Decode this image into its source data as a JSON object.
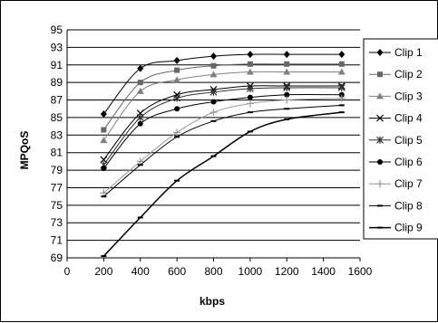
{
  "chart_data": {
    "type": "line",
    "title": "",
    "xlabel": "kbps",
    "ylabel": "MPQoS",
    "xlim": [
      0,
      1600
    ],
    "ylim": [
      69,
      95
    ],
    "xticks": [
      0,
      200,
      400,
      600,
      800,
      1000,
      1200,
      1400,
      1600
    ],
    "yticks": [
      69,
      71,
      73,
      75,
      77,
      79,
      81,
      83,
      85,
      87,
      89,
      91,
      93,
      95
    ],
    "grid": "horizontal",
    "legend_position": "right",
    "x": [
      200,
      400,
      600,
      800,
      1000,
      1200,
      1500
    ],
    "series": [
      {
        "name": "Clip 1",
        "marker": "diamond",
        "color": "#000000",
        "values": [
          85.4,
          90.6,
          91.5,
          92.0,
          92.2,
          92.2,
          92.2
        ]
      },
      {
        "name": "Clip 2",
        "marker": "square",
        "color": "#666666",
        "values": [
          83.6,
          89.0,
          90.4,
          90.9,
          91.1,
          91.1,
          91.1
        ]
      },
      {
        "name": "Clip 3",
        "marker": "triangle",
        "color": "#808080",
        "values": [
          82.4,
          88.0,
          89.3,
          89.9,
          90.2,
          90.2,
          90.2
        ]
      },
      {
        "name": "Clip 4",
        "marker": "x",
        "color": "#000000",
        "values": [
          80.2,
          85.5,
          87.6,
          88.2,
          88.6,
          88.6,
          88.6
        ]
      },
      {
        "name": "Clip 5",
        "marker": "asterisk",
        "color": "#333333",
        "values": [
          79.6,
          85.0,
          87.2,
          87.9,
          88.3,
          88.4,
          88.4
        ]
      },
      {
        "name": "Clip 6",
        "marker": "circle",
        "color": "#000000",
        "values": [
          79.2,
          84.3,
          86.0,
          86.8,
          87.3,
          87.6,
          87.6
        ]
      },
      {
        "name": "Clip 7",
        "marker": "plus",
        "color": "#999999",
        "values": [
          76.4,
          80.0,
          83.3,
          85.6,
          86.6,
          87.0,
          87.2
        ]
      },
      {
        "name": "Clip 8",
        "marker": "dash",
        "color": "#000000",
        "values": [
          76.0,
          79.6,
          82.8,
          84.6,
          85.6,
          86.0,
          86.4
        ]
      },
      {
        "name": "Clip 9",
        "marker": "dash",
        "color": "#000000",
        "values": [
          69.2,
          73.6,
          77.8,
          80.6,
          83.4,
          84.8,
          85.6
        ]
      }
    ]
  }
}
